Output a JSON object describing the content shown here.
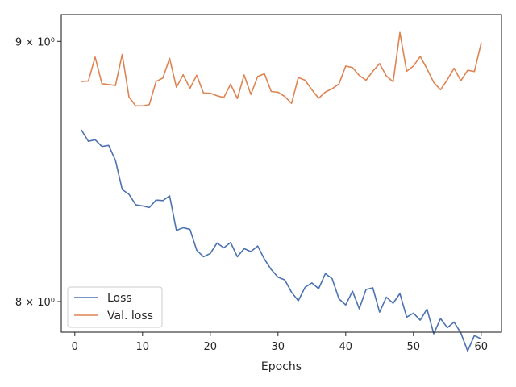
{
  "chart_data": {
    "type": "line",
    "title": "",
    "xlabel": "Epochs",
    "ylabel": "",
    "yscale": "log",
    "xlim": [
      -2,
      63
    ],
    "ylim": [
      7.89,
      9.11
    ],
    "grid": false,
    "legend_position": "lower-left",
    "x_ticks": [
      0,
      10,
      20,
      30,
      40,
      50,
      60
    ],
    "y_ticks": [
      {
        "value": 8,
        "label": "8 × 10⁰"
      },
      {
        "value": 9,
        "label": "9 × 10⁰"
      }
    ],
    "x": [
      1,
      2,
      3,
      4,
      5,
      6,
      7,
      8,
      9,
      10,
      11,
      12,
      13,
      14,
      15,
      16,
      17,
      18,
      19,
      20,
      21,
      22,
      23,
      24,
      25,
      26,
      27,
      28,
      29,
      30,
      31,
      32,
      33,
      34,
      35,
      36,
      37,
      38,
      39,
      40,
      41,
      42,
      43,
      44,
      45,
      46,
      47,
      48,
      49,
      50,
      51,
      52,
      53,
      54,
      55,
      56,
      57,
      58,
      59,
      60
    ],
    "series": [
      {
        "name": "Loss",
        "color": "#4c72b0",
        "values": [
          8.645,
          8.602,
          8.608,
          8.582,
          8.586,
          8.528,
          8.416,
          8.398,
          8.358,
          8.354,
          8.348,
          8.376,
          8.374,
          8.392,
          8.262,
          8.272,
          8.266,
          8.188,
          8.164,
          8.176,
          8.215,
          8.197,
          8.217,
          8.164,
          8.194,
          8.183,
          8.204,
          8.155,
          8.117,
          8.089,
          8.079,
          8.034,
          8.003,
          8.052,
          8.068,
          8.047,
          8.102,
          8.083,
          8.01,
          7.988,
          8.038,
          7.974,
          8.044,
          8.05,
          7.962,
          8.016,
          7.994,
          8.029,
          7.944,
          7.958,
          7.933,
          7.973,
          7.884,
          7.939,
          7.906,
          7.926,
          7.887,
          7.823,
          7.878,
          7.866
        ]
      },
      {
        "name": "Val. loss",
        "color": "#dd8452",
        "values": [
          8.838,
          8.84,
          8.936,
          8.829,
          8.826,
          8.822,
          8.947,
          8.776,
          8.741,
          8.741,
          8.746,
          8.838,
          8.852,
          8.931,
          8.815,
          8.865,
          8.811,
          8.863,
          8.792,
          8.791,
          8.781,
          8.774,
          8.827,
          8.77,
          8.864,
          8.786,
          8.858,
          8.869,
          8.798,
          8.795,
          8.778,
          8.751,
          8.854,
          8.843,
          8.805,
          8.771,
          8.796,
          8.809,
          8.828,
          8.9,
          8.894,
          8.862,
          8.843,
          8.879,
          8.91,
          8.86,
          8.837,
          9.036,
          8.879,
          8.9,
          8.939,
          8.889,
          8.834,
          8.805,
          8.845,
          8.891,
          8.841,
          8.883,
          8.878,
          8.993
        ]
      }
    ]
  }
}
